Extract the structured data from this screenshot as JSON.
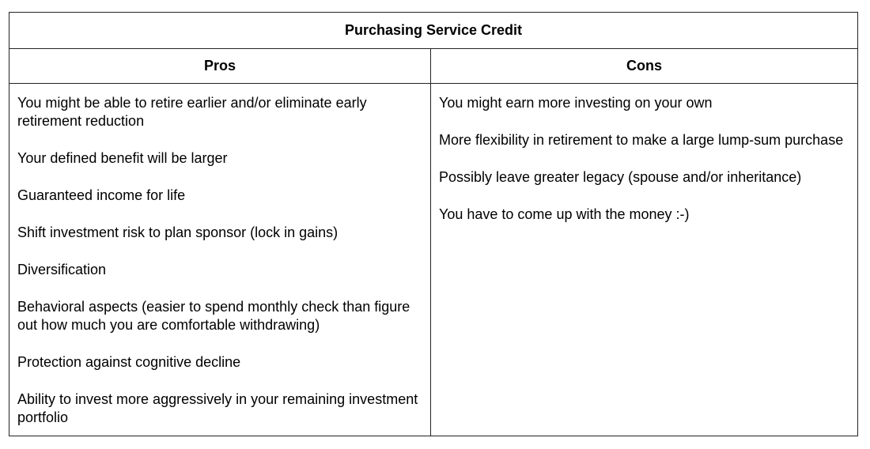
{
  "table": {
    "title": "Purchasing Service Credit",
    "headers": [
      "Pros",
      "Cons"
    ],
    "pros": [
      "You might be able to retire earlier and/or eliminate early retirement reduction",
      "Your defined benefit will be larger",
      "Guaranteed income for life",
      "Shift investment risk to plan sponsor (lock in gains)",
      "Diversification",
      "Behavioral aspects (easier to spend monthly check than figure out how much you are comfortable withdrawing)",
      "Protection against cognitive decline",
      "Ability to invest more aggressively in your remaining investment portfolio"
    ],
    "cons": [
      "You might earn more investing on your own",
      "More flexibility in retirement to make a large lump-sum purchase",
      "Possibly leave greater legacy (spouse and/or inheritance)",
      "You have to come up with the money :-)"
    ]
  }
}
